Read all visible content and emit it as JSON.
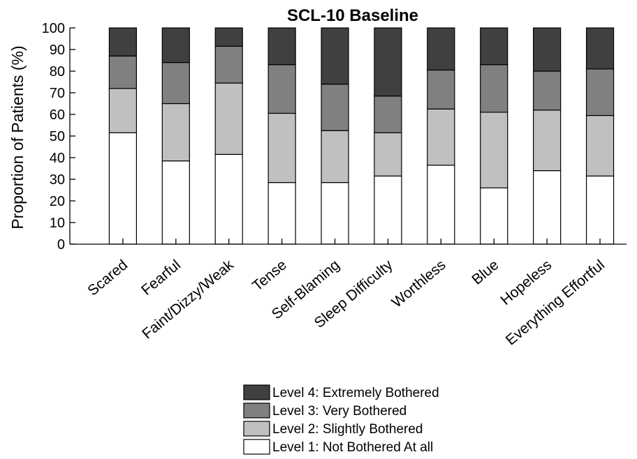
{
  "chart_data": {
    "type": "bar",
    "stacked": true,
    "title": "SCL-10 Baseline",
    "xlabel": "",
    "ylabel": "Proportion of Patients (%)",
    "ylim": [
      0,
      100
    ],
    "yticks": [
      "0",
      "10",
      "20",
      "30",
      "40",
      "50",
      "60",
      "70",
      "80",
      "90",
      "100"
    ],
    "grid": false,
    "legend_position": "bottom-center",
    "categories": [
      "Scared",
      "Fearful",
      "Faint/Dizzy/Weak",
      "Tense",
      "Self-Blaming",
      "Sleep Difficulty",
      "Worthless",
      "Blue",
      "Hopeless",
      "Everything Effortful"
    ],
    "series": [
      {
        "name": "Level 1: Not Bothered At all",
        "color": "#ffffff",
        "values": [
          51.5,
          38.5,
          41.5,
          28.5,
          28.5,
          31.5,
          36.5,
          26.0,
          34.0,
          31.5
        ]
      },
      {
        "name": "Level 2: Slightly Bothered",
        "color": "#c0c0c0",
        "values": [
          20.5,
          26.5,
          33.0,
          32.0,
          24.0,
          20.0,
          26.0,
          35.0,
          28.0,
          28.0
        ]
      },
      {
        "name": "Level 3: Very Bothered",
        "color": "#808080",
        "values": [
          15.0,
          19.0,
          17.0,
          22.5,
          21.5,
          17.0,
          18.0,
          22.0,
          18.0,
          21.5
        ]
      },
      {
        "name": "Level 4: Extremely Bothered",
        "color": "#404040",
        "values": [
          13.0,
          16.0,
          8.5,
          17.0,
          26.0,
          31.5,
          19.5,
          17.0,
          20.0,
          19.0
        ]
      }
    ],
    "legend": [
      {
        "label": "Level 4: Extremely Bothered",
        "color": "#404040"
      },
      {
        "label": "Level 3: Very Bothered",
        "color": "#808080"
      },
      {
        "label": "Level 2: Slightly Bothered",
        "color": "#c0c0c0"
      },
      {
        "label": "Level 1: Not Bothered At all",
        "color": "#ffffff"
      }
    ]
  }
}
